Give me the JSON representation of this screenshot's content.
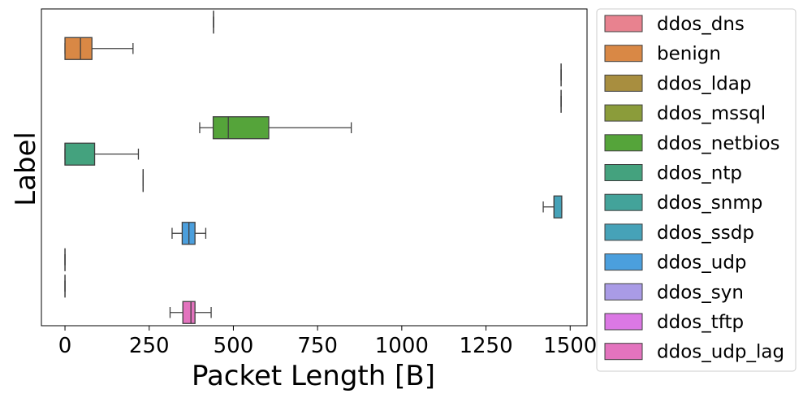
{
  "chart_data": {
    "type": "box",
    "orientation": "horizontal",
    "xlabel": "Packet Length [B]",
    "ylabel": "Label",
    "xlim": [
      -70,
      1550
    ],
    "xticks": [
      0,
      250,
      500,
      750,
      1000,
      1250,
      1500
    ],
    "xtick_labels": [
      "0",
      "250",
      "500",
      "750",
      "1000",
      "1250",
      "1500"
    ],
    "legend_position": "outside-right",
    "grid": false,
    "series": [
      {
        "name": "ddos_dns",
        "color": "#e8828f",
        "whislo": 441,
        "q1": 441,
        "med": 441,
        "q3": 441,
        "whishi": 441
      },
      {
        "name": "benign",
        "color": "#d98845",
        "whislo": 0,
        "q1": 0,
        "med": 46,
        "q3": 80,
        "whishi": 202
      },
      {
        "name": "ddos_ldap",
        "color": "#a88e3f",
        "whislo": 1473,
        "q1": 1473,
        "med": 1473,
        "q3": 1473,
        "whishi": 1473
      },
      {
        "name": "ddos_mssql",
        "color": "#8b9c3a",
        "whislo": 1473,
        "q1": 1473,
        "med": 1473,
        "q3": 1473,
        "whishi": 1473
      },
      {
        "name": "ddos_netbios",
        "color": "#55a43a",
        "whislo": 400,
        "q1": 440,
        "med": 485,
        "q3": 605,
        "whishi": 850
      },
      {
        "name": "ddos_ntp",
        "color": "#44a27e",
        "whislo": 0,
        "q1": 0,
        "med": 0,
        "q3": 88,
        "whishi": 218
      },
      {
        "name": "ddos_snmp",
        "color": "#43a39a",
        "whislo": 232,
        "q1": 232,
        "med": 232,
        "q3": 232,
        "whishi": 232
      },
      {
        "name": "ddos_ssdp",
        "color": "#46a2b8",
        "whislo": 1420,
        "q1": 1452,
        "med": 1452,
        "q3": 1475,
        "whishi": 1475
      },
      {
        "name": "ddos_udp",
        "color": "#4b9fdd",
        "whislo": 318,
        "q1": 348,
        "med": 368,
        "q3": 386,
        "whishi": 418
      },
      {
        "name": "ddos_syn",
        "color": "#a99be6",
        "whislo": 0,
        "q1": 0,
        "med": 0,
        "q3": 0,
        "whishi": 0
      },
      {
        "name": "ddos_tftp",
        "color": "#db78e4",
        "whislo": 0,
        "q1": 0,
        "med": 0,
        "q3": 0,
        "whishi": 0
      },
      {
        "name": "ddos_udp_lag",
        "color": "#e373be",
        "whislo": 312,
        "q1": 350,
        "med": 374,
        "q3": 386,
        "whishi": 434
      }
    ]
  }
}
